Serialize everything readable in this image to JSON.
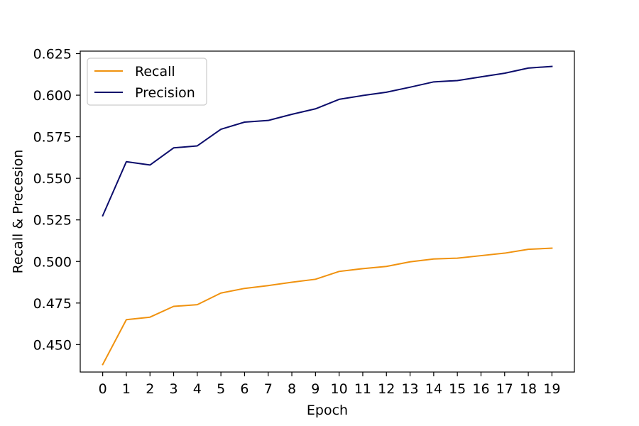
{
  "chart_data": {
    "type": "line",
    "title": "",
    "xlabel": "Epoch",
    "ylabel": "Recall & Precesion",
    "x": [
      0,
      1,
      2,
      3,
      4,
      5,
      6,
      7,
      8,
      9,
      10,
      11,
      12,
      13,
      14,
      15,
      16,
      17,
      18,
      19
    ],
    "x_tick_labels": [
      "0",
      "1",
      "2",
      "3",
      "4",
      "5",
      "6",
      "7",
      "8",
      "9",
      "10",
      "11",
      "12",
      "13",
      "14",
      "15",
      "16",
      "17",
      "18",
      "19"
    ],
    "xlim": [
      -0.95,
      19.95
    ],
    "ylim": [
      0.4335,
      0.6265
    ],
    "y_ticks": [
      0.45,
      0.475,
      0.5,
      0.525,
      0.55,
      0.575,
      0.6,
      0.625
    ],
    "y_tick_labels": [
      "0.450",
      "0.475",
      "0.500",
      "0.525",
      "0.550",
      "0.575",
      "0.600",
      "0.625"
    ],
    "grid": false,
    "legend_position": "top-left",
    "series": [
      {
        "name": "Recall",
        "color": "#f0920f",
        "values": [
          0.438,
          0.465,
          0.4665,
          0.473,
          0.474,
          0.481,
          0.4838,
          0.4855,
          0.4875,
          0.4893,
          0.494,
          0.4957,
          0.497,
          0.4998,
          0.5015,
          0.502,
          0.5035,
          0.505,
          0.5073,
          0.508
        ]
      },
      {
        "name": "Precision",
        "color": "#0b0c6b",
        "values": [
          0.5275,
          0.56,
          0.558,
          0.5683,
          0.5695,
          0.5795,
          0.5838,
          0.5848,
          0.5885,
          0.5918,
          0.5975,
          0.5998,
          0.6018,
          0.6048,
          0.608,
          0.6088,
          0.611,
          0.6132,
          0.6163,
          0.6173
        ]
      }
    ]
  }
}
